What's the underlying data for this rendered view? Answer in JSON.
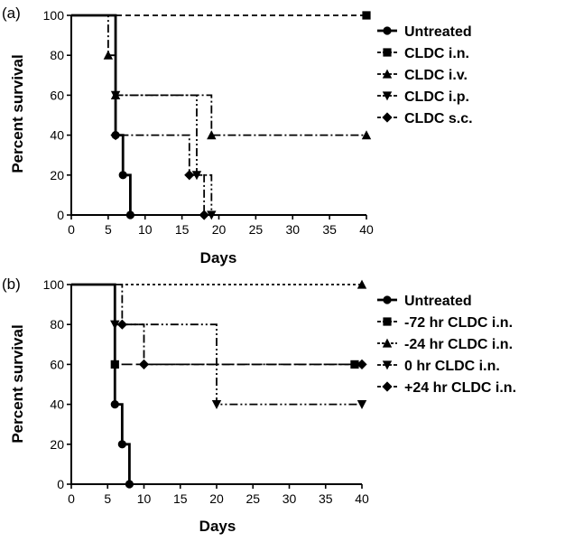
{
  "chart_data": [
    {
      "panel": "(a)",
      "type": "line",
      "step": true,
      "xlabel": "Days",
      "ylabel": "Percent survival",
      "xlim": [
        0,
        40
      ],
      "ylim": [
        0,
        100
      ],
      "xticks": [
        0,
        5,
        10,
        15,
        20,
        25,
        30,
        35,
        40
      ],
      "yticks": [
        0,
        20,
        40,
        60,
        80,
        100
      ],
      "legend_position": "right",
      "series": [
        {
          "name": "Untreated",
          "marker": "circle",
          "dash": "solid",
          "width": 2.8,
          "points": [
            [
              0,
              100
            ],
            [
              6,
              100
            ],
            [
              6,
              40
            ],
            [
              7,
              40
            ],
            [
              7,
              20
            ],
            [
              8,
              20
            ],
            [
              8,
              0
            ]
          ],
          "markers": [
            [
              6,
              40
            ],
            [
              7,
              20
            ],
            [
              8,
              0
            ]
          ]
        },
        {
          "name": "CLDC i.n.",
          "marker": "square",
          "dash": "dash",
          "width": 1.8,
          "points": [
            [
              0,
              100
            ],
            [
              40,
              100
            ]
          ],
          "markers": [
            [
              40,
              100
            ]
          ]
        },
        {
          "name": "CLDC i.v.",
          "marker": "triangle-up",
          "dash": "dashdot",
          "width": 1.8,
          "points": [
            [
              0,
              100
            ],
            [
              5,
              100
            ],
            [
              5,
              80
            ],
            [
              6,
              80
            ],
            [
              6,
              60
            ],
            [
              19,
              60
            ],
            [
              19,
              40
            ],
            [
              40,
              40
            ]
          ],
          "markers": [
            [
              5,
              80
            ],
            [
              6,
              60
            ],
            [
              19,
              40
            ],
            [
              40,
              40
            ]
          ]
        },
        {
          "name": "CLDC i.p.",
          "marker": "triangle-down",
          "dash": "dashdotdot",
          "width": 1.8,
          "points": [
            [
              0,
              100
            ],
            [
              6,
              100
            ],
            [
              6,
              60
            ],
            [
              17,
              60
            ],
            [
              17,
              20
            ],
            [
              19,
              20
            ],
            [
              19,
              0
            ]
          ],
          "markers": [
            [
              6,
              60
            ],
            [
              17,
              20
            ],
            [
              19,
              0
            ]
          ]
        },
        {
          "name": "CLDC s.c.",
          "marker": "diamond",
          "dash": "dashdot",
          "width": 1.8,
          "points": [
            [
              0,
              100
            ],
            [
              6,
              100
            ],
            [
              6,
              40
            ],
            [
              16,
              40
            ],
            [
              16,
              20
            ],
            [
              18,
              20
            ],
            [
              18,
              0
            ]
          ],
          "markers": [
            [
              6,
              40
            ],
            [
              16,
              20
            ],
            [
              18,
              0
            ]
          ]
        }
      ]
    },
    {
      "panel": "(b)",
      "type": "line",
      "step": true,
      "xlabel": "Days",
      "ylabel": "Percent survival",
      "xlim": [
        0,
        40
      ],
      "ylim": [
        0,
        100
      ],
      "xticks": [
        0,
        5,
        10,
        15,
        20,
        25,
        30,
        35,
        40
      ],
      "yticks": [
        0,
        20,
        40,
        60,
        80,
        100
      ],
      "legend_position": "right",
      "series": [
        {
          "name": "Untreated",
          "marker": "circle",
          "dash": "solid",
          "width": 2.8,
          "points": [
            [
              0,
              100
            ],
            [
              6,
              100
            ],
            [
              6,
              40
            ],
            [
              7,
              40
            ],
            [
              7,
              20
            ],
            [
              8,
              20
            ],
            [
              8,
              0
            ]
          ],
          "markers": [
            [
              6,
              40
            ],
            [
              7,
              20
            ],
            [
              8,
              0
            ]
          ]
        },
        {
          "name": "-72 hr CLDC i.n.",
          "marker": "square",
          "dash": "longdash",
          "width": 1.8,
          "points": [
            [
              0,
              100
            ],
            [
              6,
              100
            ],
            [
              6,
              60
            ],
            [
              40,
              60
            ]
          ],
          "markers": [
            [
              6,
              60
            ],
            [
              39,
              60
            ]
          ]
        },
        {
          "name": "-24 hr CLDC i.n.",
          "marker": "triangle-up",
          "dash": "dot",
          "width": 1.8,
          "points": [
            [
              0,
              100
            ],
            [
              40,
              100
            ]
          ],
          "markers": [
            [
              40,
              100
            ]
          ]
        },
        {
          "name": "0 hr CLDC i.n.",
          "marker": "triangle-down",
          "dash": "dashdotdot",
          "width": 1.8,
          "points": [
            [
              0,
              100
            ],
            [
              6,
              100
            ],
            [
              6,
              80
            ],
            [
              20,
              80
            ],
            [
              20,
              40
            ],
            [
              40,
              40
            ]
          ],
          "markers": [
            [
              6,
              80
            ],
            [
              20,
              40
            ],
            [
              40,
              40
            ]
          ]
        },
        {
          "name": "+24 hr CLDC i.n.",
          "marker": "diamond",
          "dash": "dashdot",
          "width": 1.8,
          "points": [
            [
              0,
              100
            ],
            [
              7,
              100
            ],
            [
              7,
              80
            ],
            [
              10,
              80
            ],
            [
              10,
              60
            ],
            [
              40,
              60
            ]
          ],
          "markers": [
            [
              7,
              80
            ],
            [
              10,
              60
            ],
            [
              40,
              60
            ]
          ]
        }
      ]
    }
  ]
}
